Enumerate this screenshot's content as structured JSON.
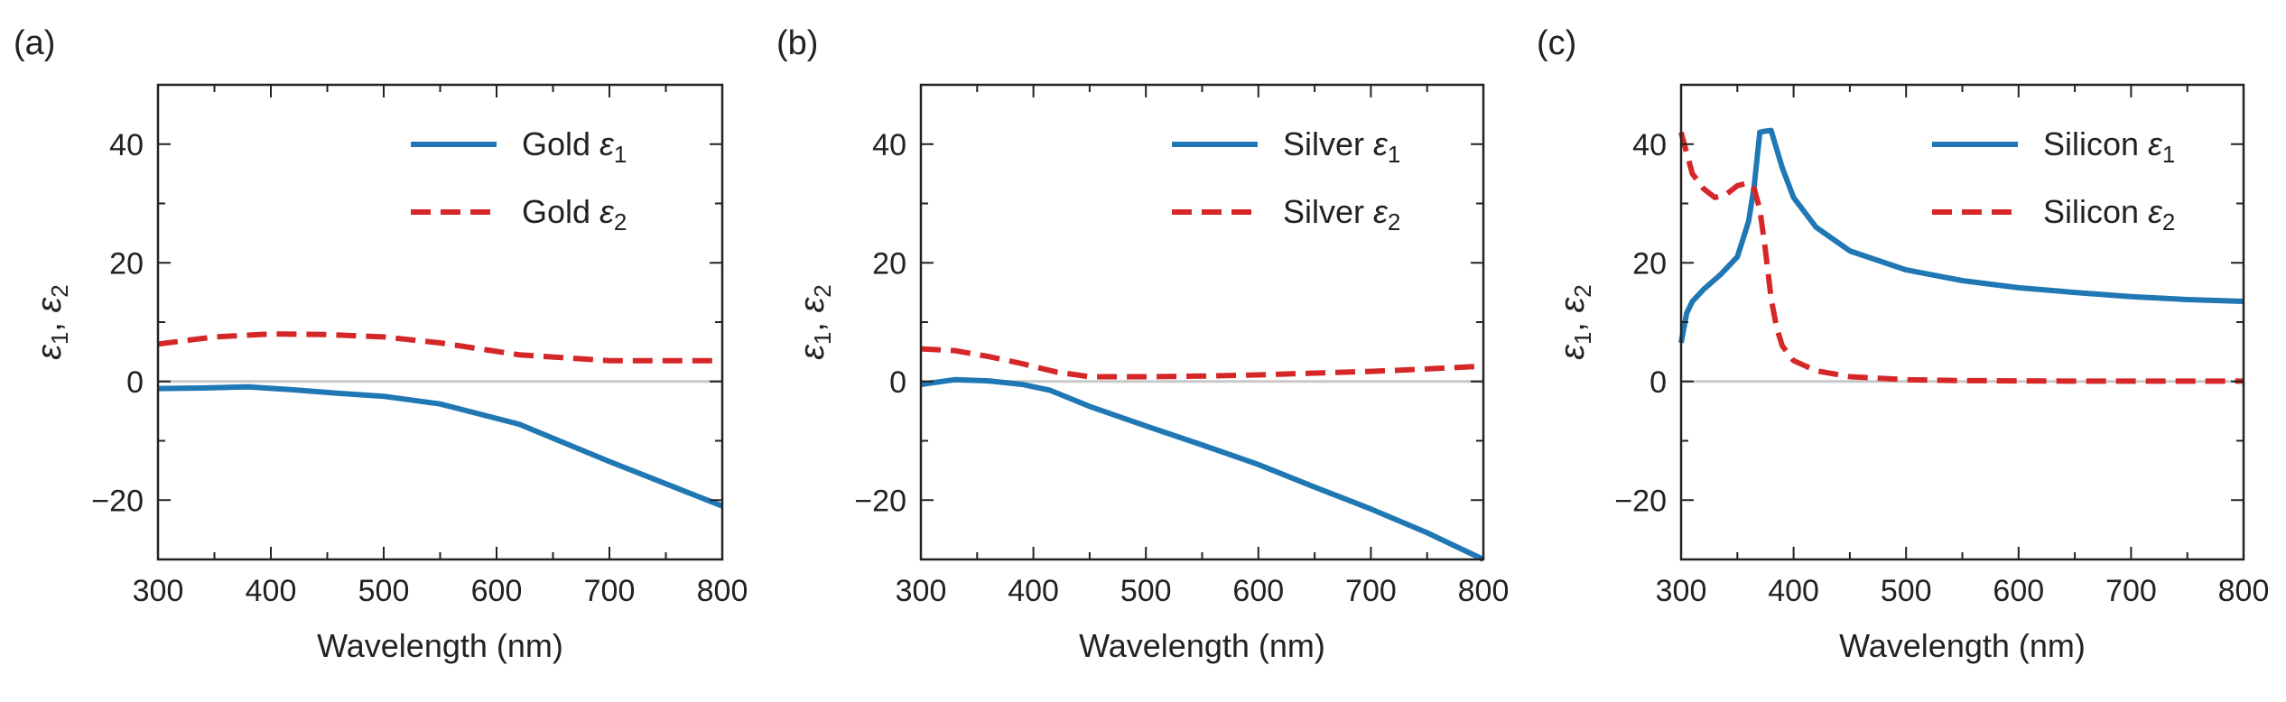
{
  "figure": {
    "x_label": "Wavelength (nm)",
    "y_label": {
      "main": "ε",
      "sub1": "1",
      "sep": ",  ",
      "sub2": "2"
    }
  },
  "chart_data": [
    {
      "type": "line",
      "panel_label": "(a)",
      "xlabel": "Wavelength (nm)",
      "ylabel": "ε1, ε2",
      "xlim": [
        300,
        800
      ],
      "ylim": [
        -30,
        50
      ],
      "xticks": [
        300,
        400,
        500,
        600,
        700,
        800
      ],
      "yticks": [
        -20,
        0,
        20,
        40
      ],
      "zero_line": true,
      "legend": "top-right",
      "series": [
        {
          "name": "Gold ε1",
          "legend_text": "Gold ",
          "symbol": "ε",
          "sub": "1",
          "style": "solid",
          "color": "#1f77b4",
          "x": [
            300,
            340,
            380,
            420,
            460,
            500,
            550,
            620,
            700,
            760,
            800
          ],
          "y": [
            -1.2,
            -1.1,
            -0.9,
            -1.4,
            -2.0,
            -2.5,
            -3.8,
            -7.2,
            -13.5,
            -18.0,
            -21.0
          ]
        },
        {
          "name": "Gold ε2",
          "legend_text": "Gold ",
          "symbol": "ε",
          "sub": "2",
          "style": "dashed",
          "color": "#d62728",
          "x": [
            300,
            350,
            400,
            450,
            500,
            550,
            620,
            700,
            800
          ],
          "y": [
            6.3,
            7.5,
            8.0,
            7.9,
            7.5,
            6.5,
            4.5,
            3.5,
            3.5
          ]
        }
      ]
    },
    {
      "type": "line",
      "panel_label": "(b)",
      "xlabel": "Wavelength (nm)",
      "ylabel": "ε1, ε2",
      "xlim": [
        300,
        800
      ],
      "ylim": [
        -30,
        50
      ],
      "xticks": [
        300,
        400,
        500,
        600,
        700,
        800
      ],
      "yticks": [
        -20,
        0,
        20,
        40
      ],
      "zero_line": true,
      "legend": "top-right",
      "series": [
        {
          "name": "Silver ε1",
          "legend_text": "Silver ",
          "symbol": "ε",
          "sub": "1",
          "style": "solid",
          "color": "#1f77b4",
          "x": [
            300,
            330,
            360,
            390,
            415,
            450,
            500,
            550,
            600,
            650,
            700,
            750,
            800
          ],
          "y": [
            -0.5,
            0.3,
            0.1,
            -0.5,
            -1.5,
            -4.2,
            -7.5,
            -10.7,
            -14.0,
            -17.8,
            -21.5,
            -25.5,
            -30.0
          ]
        },
        {
          "name": "Silver ε2",
          "legend_text": "Silver ",
          "symbol": "ε",
          "sub": "2",
          "style": "dashed",
          "color": "#d62728",
          "x": [
            300,
            330,
            360,
            390,
            420,
            450,
            500,
            550,
            600,
            650,
            700,
            750,
            800
          ],
          "y": [
            5.5,
            5.2,
            4.2,
            3.0,
            1.6,
            0.8,
            0.8,
            0.9,
            1.1,
            1.4,
            1.7,
            2.1,
            2.6
          ]
        }
      ]
    },
    {
      "type": "line",
      "panel_label": "(c)",
      "xlabel": "Wavelength (nm)",
      "ylabel": "ε1, ε2",
      "xlim": [
        300,
        800
      ],
      "ylim": [
        -30,
        50
      ],
      "xticks": [
        300,
        400,
        500,
        600,
        700,
        800
      ],
      "yticks": [
        -20,
        0,
        20,
        40
      ],
      "zero_line": true,
      "legend": "top-right",
      "series": [
        {
          "name": "Silicon ε1",
          "legend_text": "Silicon ",
          "symbol": "ε",
          "sub": "1",
          "style": "solid",
          "color": "#1f77b4",
          "x": [
            300,
            305,
            310,
            320,
            335,
            350,
            360,
            365,
            370,
            375,
            380,
            390,
            400,
            420,
            450,
            500,
            550,
            600,
            650,
            700,
            750,
            800
          ],
          "y": [
            6.5,
            11.5,
            13.5,
            15.5,
            18.0,
            21.0,
            27.0,
            33.0,
            42.0,
            42.2,
            42.3,
            36.0,
            31.0,
            26.0,
            22.0,
            18.8,
            17.0,
            15.8,
            15.0,
            14.3,
            13.8,
            13.5
          ]
        },
        {
          "name": "Silicon ε2",
          "legend_text": "Silicon ",
          "symbol": "ε",
          "sub": "2",
          "style": "dashed",
          "color": "#d62728",
          "x": [
            300,
            305,
            310,
            320,
            330,
            340,
            350,
            360,
            365,
            370,
            375,
            380,
            385,
            390,
            400,
            420,
            450,
            500,
            550,
            600,
            650,
            700,
            800
          ],
          "y": [
            42.0,
            38.5,
            35.0,
            32.5,
            31.0,
            31.5,
            33.0,
            33.5,
            32.5,
            29.0,
            22.0,
            14.0,
            9.0,
            6.0,
            3.5,
            1.8,
            0.8,
            0.3,
            0.15,
            0.1,
            0.05,
            0.05,
            0.05
          ]
        }
      ]
    }
  ]
}
